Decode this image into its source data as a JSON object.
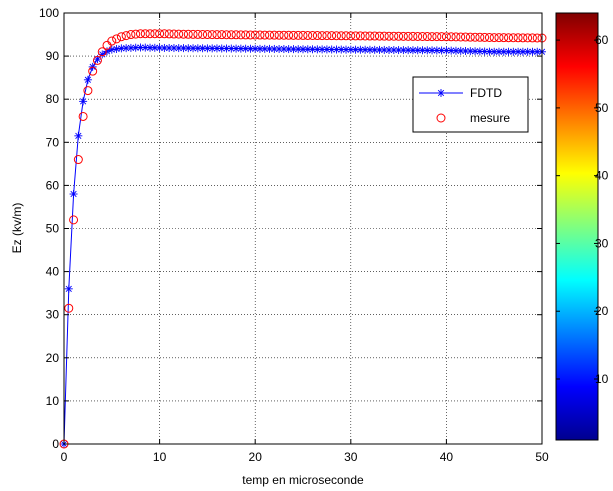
{
  "chart_data": {
    "type": "line",
    "xlabel": "temp en microseconde",
    "ylabel": "Ez (kv/m)",
    "xlim": [
      0,
      50
    ],
    "ylim": [
      0,
      100
    ],
    "xticks": [
      0,
      10,
      20,
      30,
      40,
      50
    ],
    "yticks": [
      0,
      10,
      20,
      30,
      40,
      50,
      60,
      70,
      80,
      90,
      100
    ],
    "grid": true,
    "legend_position": "top-right",
    "series": [
      {
        "name": "FDTD",
        "color": "#0000ff",
        "marker": "asterisk",
        "line": "solid",
        "x": [
          0,
          0.5,
          1,
          1.5,
          2,
          2.5,
          3,
          3.5,
          4,
          4.5,
          5,
          6,
          7,
          8,
          10,
          15,
          20,
          25,
          30,
          35,
          40,
          45,
          50
        ],
        "y": [
          0,
          36,
          58,
          71.5,
          79.5,
          84.5,
          87.5,
          89.3,
          90.4,
          91.1,
          91.5,
          91.8,
          91.9,
          92,
          91.9,
          91.8,
          91.7,
          91.6,
          91.5,
          91.4,
          91.3,
          91,
          91
        ]
      },
      {
        "name": "mesure",
        "color": "#ff0000",
        "marker": "circle",
        "line": "none",
        "x": [
          0,
          0.5,
          1,
          1.5,
          2,
          2.5,
          3,
          3.5,
          4,
          4.5,
          5,
          6,
          7,
          8,
          10,
          12,
          15,
          20,
          25,
          30,
          35,
          40,
          45,
          50
        ],
        "y": [
          0,
          31.5,
          52,
          66,
          76,
          82,
          86.5,
          89,
          91,
          92.5,
          93.5,
          94.5,
          95,
          95.2,
          95.2,
          95.1,
          95,
          94.9,
          94.8,
          94.7,
          94.6,
          94.5,
          94.3,
          94.2
        ]
      }
    ],
    "colorbar": {
      "range": [
        1,
        64
      ],
      "ticks": [
        10,
        20,
        30,
        40,
        50,
        60
      ],
      "colormap": "jet"
    }
  }
}
